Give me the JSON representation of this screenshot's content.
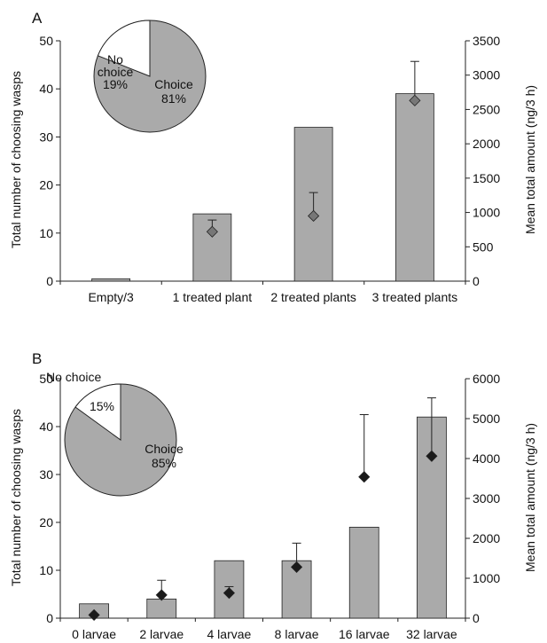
{
  "panels": [
    {
      "letter": "A",
      "chart_data": {
        "type": "bar",
        "categories": [
          "Empty/3",
          "1 treated plant",
          "2 treated plants",
          "3 treated plants"
        ],
        "series": [
          {
            "axis": "left",
            "kind": "bar",
            "values": [
              0.5,
              14,
              32,
              39
            ]
          },
          {
            "axis": "right",
            "kind": "scatter",
            "marker": "diamond",
            "values": [
              null,
              720,
              950,
              2630
            ],
            "error_upper": [
              null,
              890,
              1290,
              3200
            ]
          }
        ],
        "y_left": {
          "label": "Total number of choosing wasps",
          "range": [
            0,
            50
          ],
          "ticks": [
            0,
            10,
            20,
            30,
            40,
            50
          ]
        },
        "y_right": {
          "label": "Mean total amount (ng/3 h)",
          "range": [
            0,
            3500
          ],
          "ticks": [
            0,
            500,
            1000,
            1500,
            2000,
            2500,
            3000,
            3500
          ]
        },
        "grid": false,
        "inset_pie": {
          "slices": [
            {
              "label": "Choice",
              "value": 81,
              "pct_label": "81%",
              "color": "#aaaaaa"
            },
            {
              "label": "No choice",
              "value": 19,
              "pct_label": "19%",
              "color": "#ffffff"
            }
          ]
        },
        "colors": {
          "bar": "#aaaaaa",
          "marker_fill": "#777777"
        }
      }
    },
    {
      "letter": "B",
      "chart_data": {
        "type": "bar",
        "categories": [
          "0 larvae",
          "2 larvae",
          "4 larvae",
          "8 larvae",
          "16 larvae",
          "32 larvae"
        ],
        "series": [
          {
            "axis": "left",
            "kind": "bar",
            "values": [
              3,
              4,
              12,
              12,
              19,
              42
            ]
          },
          {
            "axis": "right",
            "kind": "scatter",
            "marker": "diamond",
            "values": [
              80,
              580,
              630,
              1280,
              3540,
              4060
            ],
            "error_upper": [
              null,
              950,
              790,
              1880,
              5100,
              5520
            ]
          }
        ],
        "y_left": {
          "label": "Total number of choosing wasps",
          "range": [
            0,
            50
          ],
          "ticks": [
            0,
            10,
            20,
            30,
            40,
            50
          ]
        },
        "y_right": {
          "label": "Mean total amount (ng/3 h)",
          "range": [
            0,
            6000
          ],
          "ticks": [
            0,
            1000,
            2000,
            3000,
            4000,
            5000,
            6000
          ]
        },
        "grid": false,
        "inset_pie": {
          "slices": [
            {
              "label": "Choice",
              "value": 85,
              "pct_label": "85%",
              "color": "#aaaaaa"
            },
            {
              "label": "No choice",
              "value": 15,
              "pct_label": "15%",
              "color": "#ffffff"
            }
          ]
        },
        "colors": {
          "bar": "#aaaaaa",
          "marker_fill": "#1a1a1a"
        }
      }
    }
  ]
}
